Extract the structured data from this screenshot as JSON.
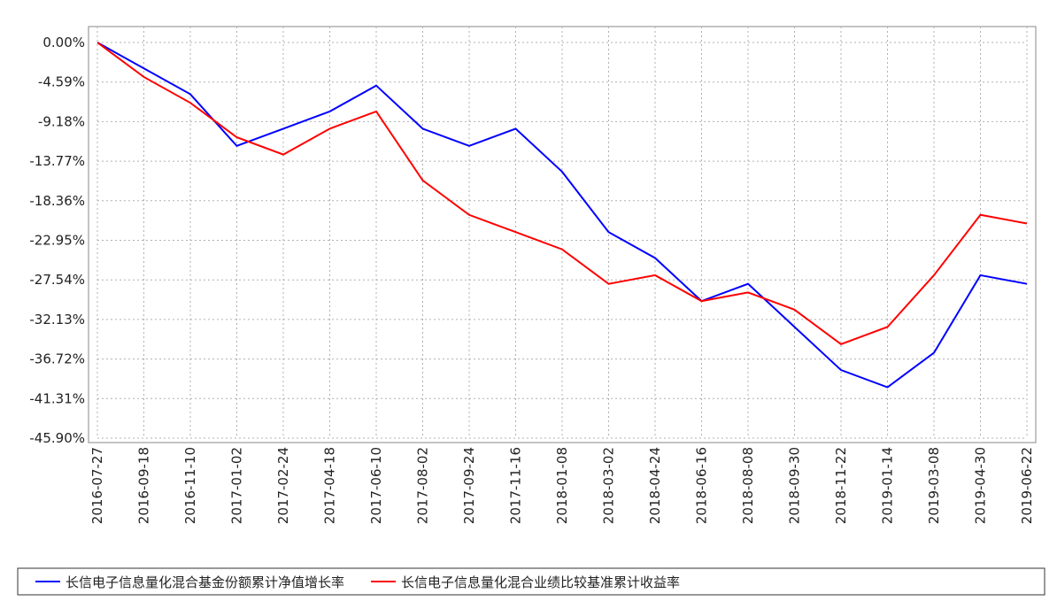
{
  "chart_data": {
    "type": "line",
    "categories": [
      "2016-07-27",
      "2016-09-18",
      "2016-11-10",
      "2017-01-02",
      "2017-02-24",
      "2017-04-18",
      "2017-06-10",
      "2017-08-02",
      "2017-09-24",
      "2017-11-16",
      "2018-01-08",
      "2018-03-02",
      "2018-04-24",
      "2018-06-16",
      "2018-08-08",
      "2018-09-30",
      "2018-11-22",
      "2019-01-14",
      "2019-03-08",
      "2019-04-30",
      "2019-06-22"
    ],
    "series": [
      {
        "name": "长信电子信息量化混合基金份额累计净值增长率",
        "color": "#0000ff",
        "values": [
          0,
          -3,
          -6,
          -12,
          -10,
          -8,
          -5,
          -10,
          -12,
          -10,
          -15,
          -22,
          -25,
          -30,
          -28,
          -33,
          -38,
          -40,
          -36,
          -27,
          -28
        ]
      },
      {
        "name": "长信电子信息量化混合业绩比较基准累计收益率",
        "color": "#ff0000",
        "values": [
          0,
          -4,
          -7,
          -11,
          -13,
          -10,
          -8,
          -16,
          -20,
          -22,
          -24,
          -28,
          -27,
          -30,
          -29,
          -31,
          -35,
          -33,
          -27,
          -20,
          -21
        ]
      }
    ],
    "ylim": [
      -45.9,
      0
    ],
    "yticks": [
      {
        "value": 0,
        "label": "0.00%"
      },
      {
        "value": -4.59,
        "label": "-4.59%"
      },
      {
        "value": -9.18,
        "label": "-9.18%"
      },
      {
        "value": -13.77,
        "label": "-13.77%"
      },
      {
        "value": -18.36,
        "label": "-18.36%"
      },
      {
        "value": -22.95,
        "label": "-22.95%"
      },
      {
        "value": -27.54,
        "label": "-27.54%"
      },
      {
        "value": -32.13,
        "label": "-32.13%"
      },
      {
        "value": -36.72,
        "label": "-36.72%"
      },
      {
        "value": -41.31,
        "label": "-41.31%"
      },
      {
        "value": -45.9,
        "label": "-45.90%"
      }
    ],
    "grid": true
  }
}
